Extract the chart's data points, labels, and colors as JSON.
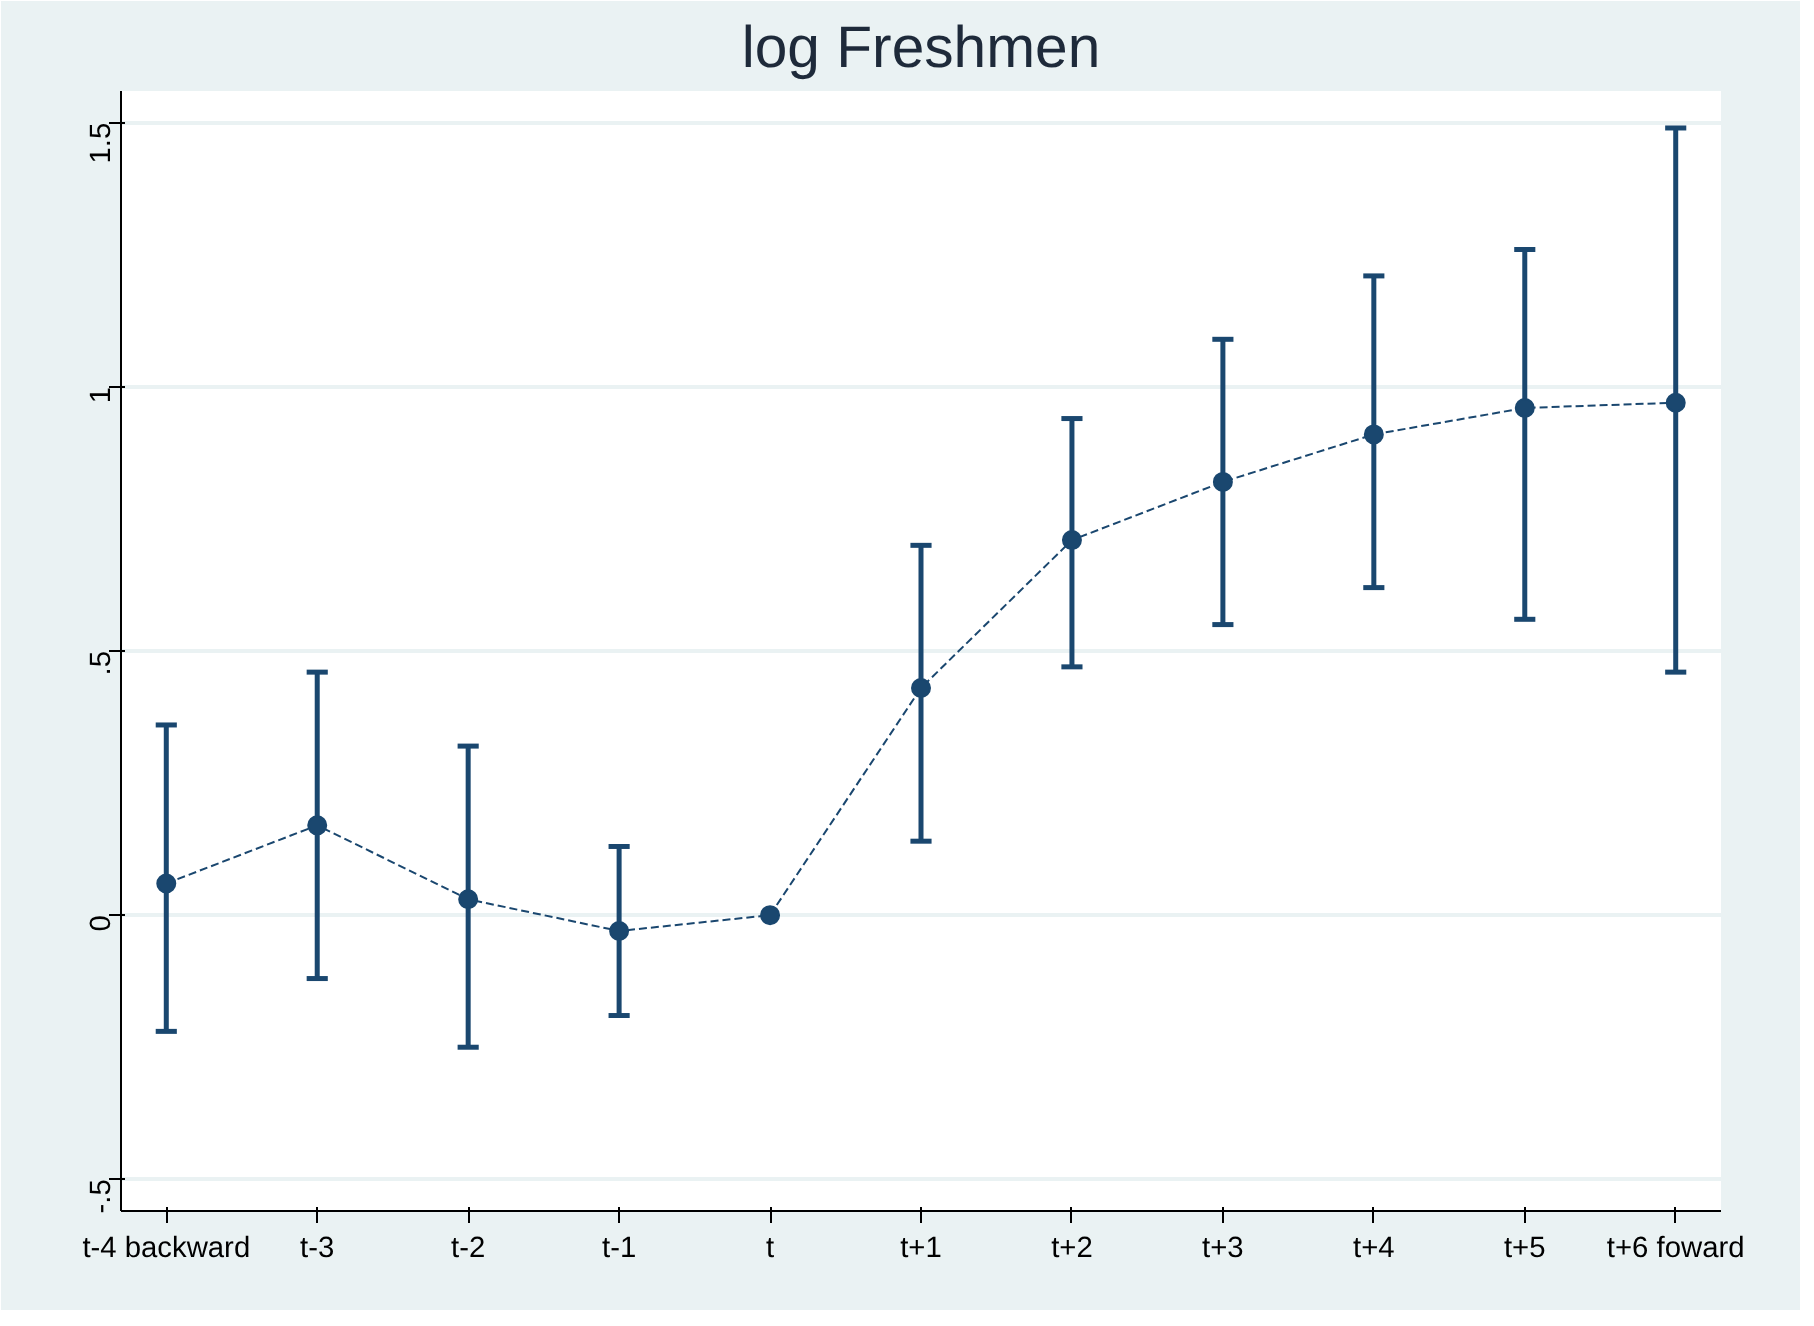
{
  "chart_data": {
    "type": "line",
    "title": "log Freshmen",
    "categories": [
      "t-4 backward",
      "t-3",
      "t-2",
      "t-1",
      "t",
      "t+1",
      "t+2",
      "t+3",
      "t+4",
      "t+5",
      "t+6 foward"
    ],
    "series": [
      {
        "color": "#1a476f",
        "values": [
          0.06,
          0.17,
          0.03,
          -0.03,
          0,
          0.43,
          0.71,
          0.82,
          0.91,
          0.96,
          0.97
        ],
        "errors": [
          [
            -0.22,
            0.36
          ],
          [
            -0.12,
            0.46
          ],
          [
            -0.25,
            0.32
          ],
          [
            -0.19,
            0.13
          ],
          null,
          [
            0.14,
            0.7
          ],
          [
            0.47,
            0.94
          ],
          [
            0.55,
            1.09
          ],
          [
            0.62,
            1.21
          ],
          [
            0.56,
            1.26
          ],
          [
            0.46,
            1.49
          ]
        ]
      }
    ],
    "ylim": [
      -0.56,
      1.56
    ],
    "yticks": [
      {
        "value": -0.5,
        "label": "-.5"
      },
      0,
      {
        "value": 0.5,
        "label": ".5"
      },
      1,
      1.5
    ],
    "grid": "y",
    "marker": "circle",
    "line_style": "dashed"
  }
}
